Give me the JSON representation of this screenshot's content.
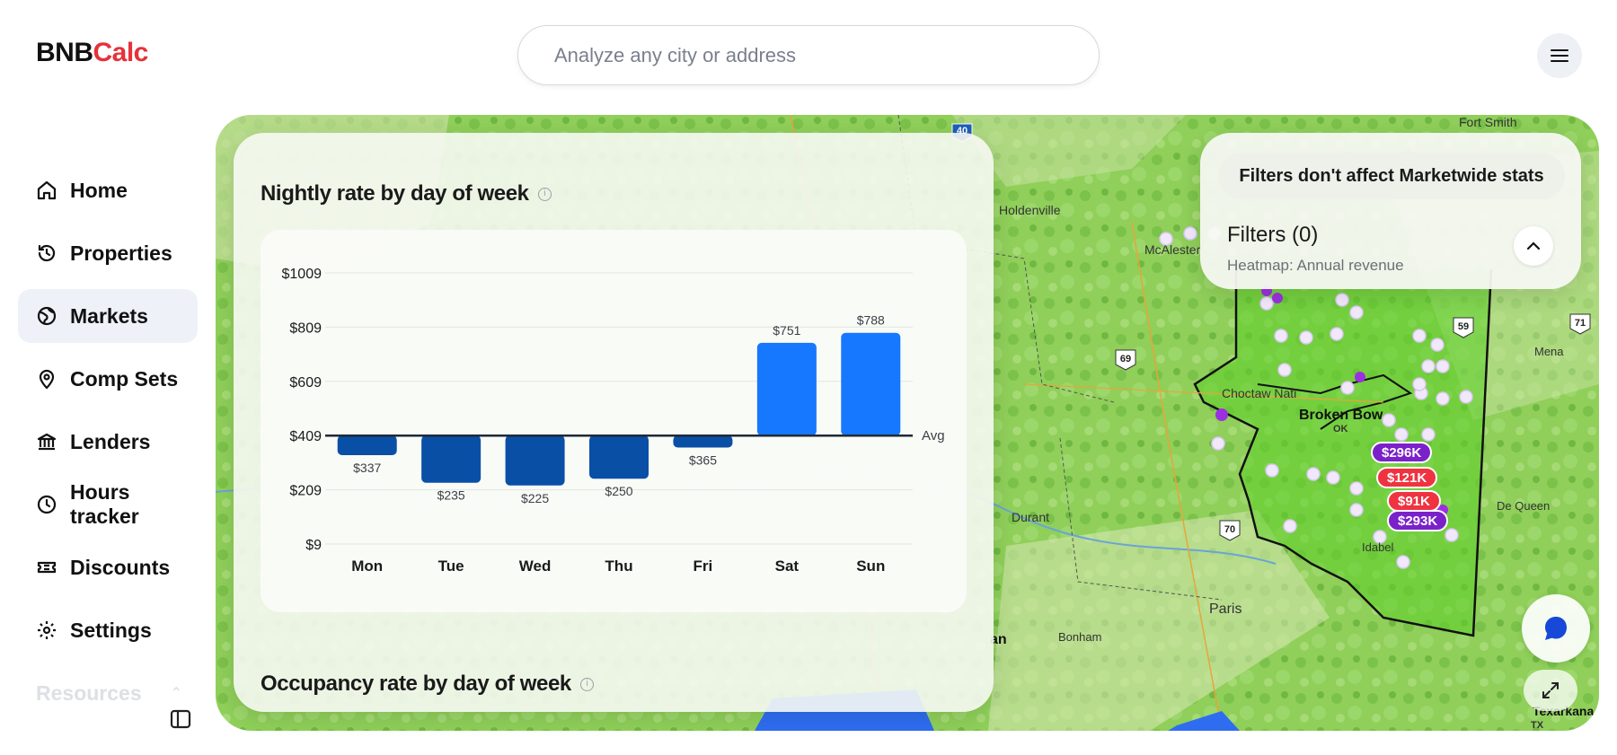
{
  "app": {
    "logo_part1": "BNB",
    "logo_part2": "Calc"
  },
  "search": {
    "placeholder": "Analyze any city or address"
  },
  "sidebar": {
    "items": [
      {
        "label": "Home",
        "icon": "home-icon"
      },
      {
        "label": "Properties",
        "icon": "history-icon"
      },
      {
        "label": "Markets",
        "icon": "globe-icon",
        "active": true
      },
      {
        "label": "Comp Sets",
        "icon": "location-pin-icon"
      },
      {
        "label": "Lenders",
        "icon": "bank-icon"
      },
      {
        "label": "Hours tracker",
        "icon": "clock-icon"
      },
      {
        "label": "Discounts",
        "icon": "ticket-icon"
      },
      {
        "label": "Settings",
        "icon": "gear-icon"
      },
      {
        "label": "Resources",
        "icon": ""
      }
    ]
  },
  "chart_card": {
    "title": "Nightly rate by day of week",
    "next_title": "Occupancy rate by day of week"
  },
  "chart_data": {
    "type": "bar",
    "title": "Nightly rate by day of week",
    "categories": [
      "Mon",
      "Tue",
      "Wed",
      "Thu",
      "Fri",
      "Sat",
      "Sun"
    ],
    "values": [
      337,
      235,
      225,
      250,
      365,
      751,
      788
    ],
    "value_labels": [
      "$337",
      "$235",
      "$225",
      "$250",
      "$365",
      "$751",
      "$788"
    ],
    "baseline": 409,
    "baseline_label": "Avg",
    "ylim": [
      9,
      1009
    ],
    "yticks": [
      1009,
      809,
      609,
      409,
      209,
      9
    ],
    "ytick_labels": [
      "$1009",
      "$809",
      "$609",
      "$409",
      "$209",
      "$9"
    ],
    "colors": {
      "below": "#0a4fa6",
      "above": "#1677ff"
    },
    "grid": true
  },
  "filters": {
    "note": "Filters don't affect Marketwide stats",
    "title": "Filters (0)",
    "subtitle": "Heatmap: Annual revenue"
  },
  "map": {
    "labels": [
      "Holdenville",
      "McAlester",
      "Choctaw Nati",
      "Broken Bow",
      "OK",
      "Durant",
      "Paris",
      "Bonham",
      "Idabel",
      "De Queen",
      "Mena",
      "Fort Smith",
      "Texarkana",
      "TX",
      "an"
    ],
    "pins": [
      {
        "label": "$296K",
        "color": "#7b21c9"
      },
      {
        "label": "$121K",
        "color": "#ef3340"
      },
      {
        "label": "$91K",
        "color": "#ef3340"
      },
      {
        "label": "$293K",
        "color": "#7b21c9"
      }
    ],
    "highway_shields": [
      "69",
      "70",
      "59",
      "71",
      "40"
    ]
  }
}
